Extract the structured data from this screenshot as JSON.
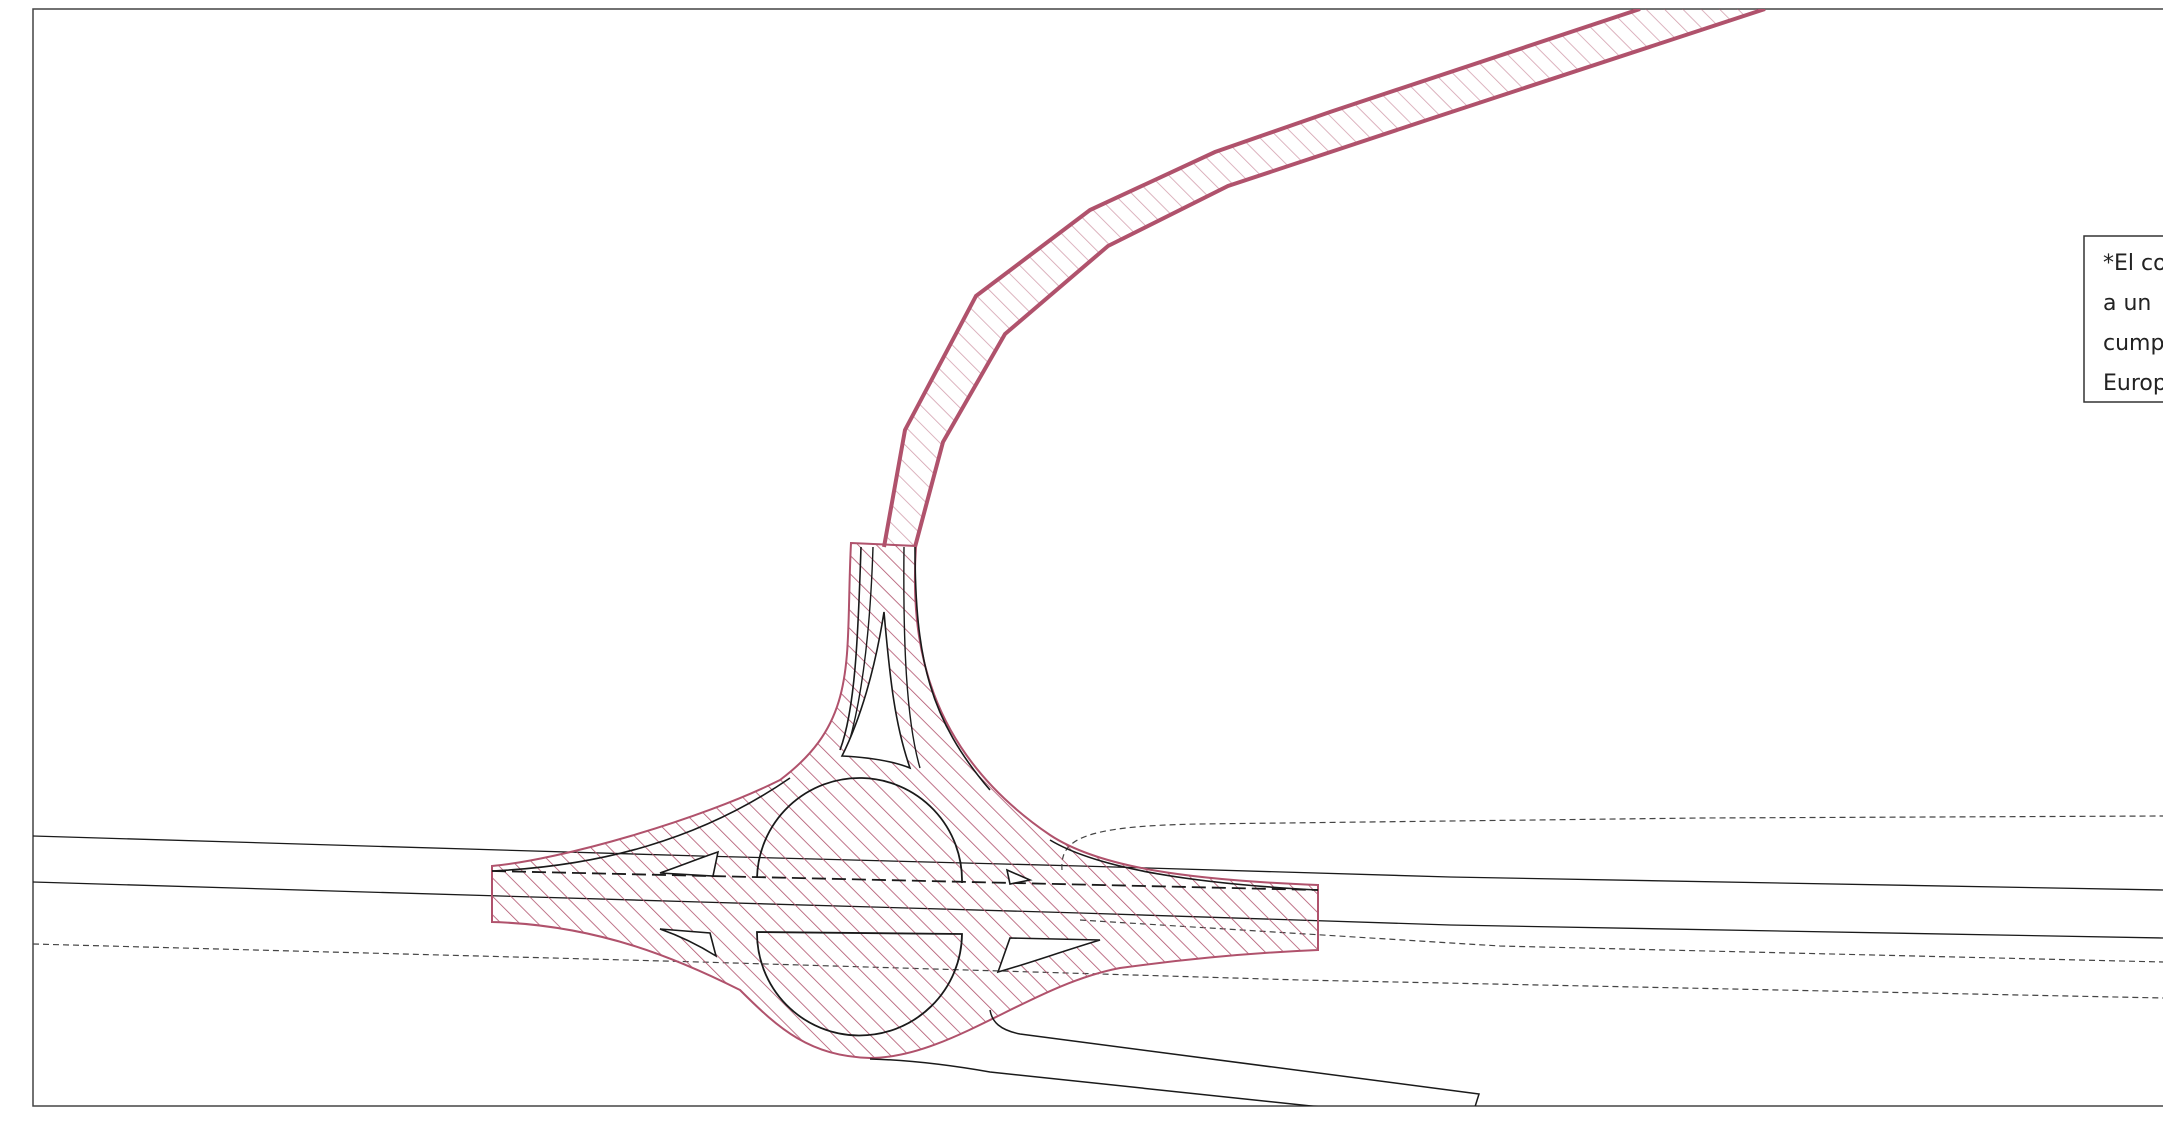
{
  "drawing": {
    "colors": {
      "accent": "#b0526c",
      "line": "#1a1a1a",
      "background": "#ffffff"
    },
    "note": {
      "lines": [
        "*El co",
        "a  un",
        "cump",
        "Europ"
      ]
    }
  }
}
